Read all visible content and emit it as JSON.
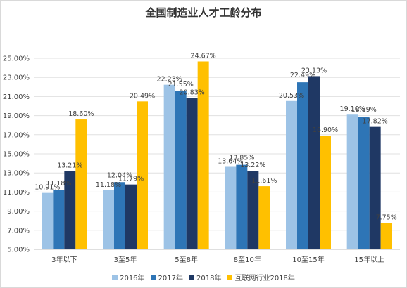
{
  "chart_data": {
    "type": "bar",
    "title": "全国制造业人才工龄分布",
    "categories": [
      "3年以下",
      "3至5年",
      "5至8年",
      "8至10年",
      "10至15年",
      "15年以上"
    ],
    "ylim": [
      5.0,
      25.0
    ],
    "yticks": [
      "5.00%",
      "7.00%",
      "9.00%",
      "11.00%",
      "13.00%",
      "15.00%",
      "17.00%",
      "19.00%",
      "21.00%",
      "23.00%",
      "25.00%"
    ],
    "grid": true,
    "legend_position": "bottom",
    "series": [
      {
        "name": "2016年",
        "color": "#9dc3e6",
        "values": [
          10.91,
          11.18,
          22.23,
          13.64,
          20.53,
          19.1
        ],
        "labels": [
          "10.91%",
          "11.18%",
          "22.23%",
          "13.64%",
          "20.53%",
          "19.10%"
        ]
      },
      {
        "name": "2017年",
        "color": "#2e75b6",
        "values": [
          11.18,
          12.04,
          21.55,
          13.85,
          22.49,
          18.89
        ],
        "labels": [
          "11.18%",
          "12.04%",
          "21.55%",
          "13.85%",
          "22.49%",
          "18.89%"
        ]
      },
      {
        "name": "2018年",
        "color": "#1f3864",
        "values": [
          13.21,
          11.79,
          20.83,
          13.22,
          23.13,
          17.82
        ],
        "labels": [
          "13.21%",
          "11.79%",
          "20.83%",
          "13.22%",
          "23.13%",
          "17.82%"
        ]
      },
      {
        "name": "互联网行业2018年",
        "color": "#ffc000",
        "values": [
          18.6,
          20.49,
          24.67,
          11.61,
          16.9,
          7.75
        ],
        "labels": [
          "18.60%",
          "20.49%",
          "24.67%",
          "11.61%",
          "16.90%",
          "7.75%"
        ]
      }
    ]
  }
}
